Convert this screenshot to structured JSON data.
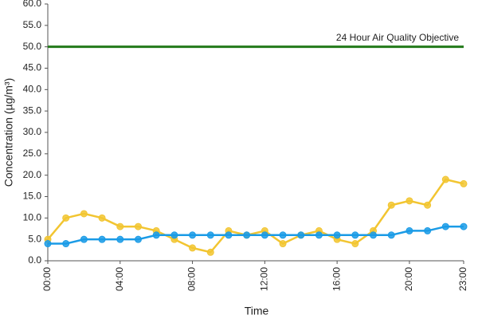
{
  "chart_data": {
    "type": "line",
    "x_label": "Time",
    "y_label": "Concentration (µg/m³)",
    "categories": [
      "00:00",
      null,
      null,
      null,
      "04:00",
      null,
      null,
      null,
      "08:00",
      null,
      null,
      null,
      "12:00",
      null,
      null,
      null,
      "16:00",
      null,
      null,
      null,
      "20:00",
      null,
      null,
      "23:00"
    ],
    "series": [
      {
        "color": "#f2c531",
        "values": [
          5,
          10,
          11,
          10,
          8,
          8,
          7,
          5,
          3,
          2,
          7,
          6,
          7,
          4,
          6,
          7,
          5,
          4,
          7,
          13,
          14,
          13,
          19,
          18
        ]
      },
      {
        "color": "#1a9be6",
        "values": [
          4,
          4,
          5,
          5,
          5,
          5,
          6,
          6,
          6,
          6,
          6,
          6,
          6,
          6,
          6,
          6,
          6,
          6,
          6,
          6,
          7,
          7,
          8,
          8
        ]
      }
    ],
    "reference_lines": [
      {
        "value": 50,
        "label": "24 Hour Air Quality Objective",
        "color": "#237a1a"
      }
    ],
    "ylim": [
      0,
      60
    ],
    "yticks": [
      {
        "value": 0,
        "label": "0.0"
      },
      {
        "value": 5,
        "label": "5.0"
      },
      {
        "value": 10,
        "label": "10.0"
      },
      {
        "value": 15,
        "label": "15.0"
      },
      {
        "value": 20,
        "label": "20.0"
      },
      {
        "value": 25,
        "label": "25.0"
      },
      {
        "value": 30,
        "label": "30.0"
      },
      {
        "value": 35,
        "label": "35.0"
      },
      {
        "value": 40,
        "label": "40.0"
      },
      {
        "value": 45,
        "label": "45.0"
      },
      {
        "value": 50,
        "label": "50.0"
      },
      {
        "value": 55,
        "label": "55.0"
      },
      {
        "value": 60,
        "label": "60.0"
      }
    ],
    "grid": false
  }
}
